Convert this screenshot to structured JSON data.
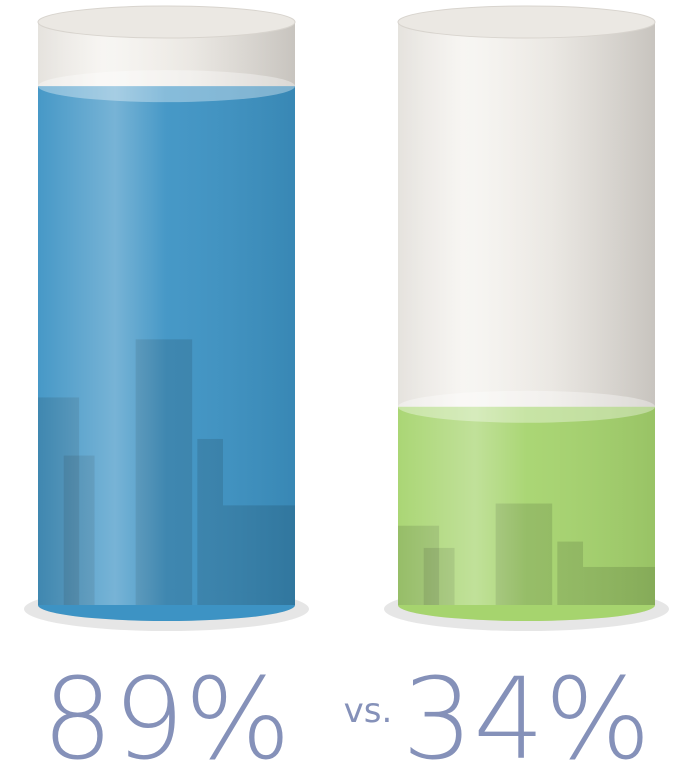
{
  "chart_data": {
    "type": "cylinder",
    "categories": [
      null,
      null
    ],
    "values": [
      89,
      34
    ],
    "value_labels": [
      "89%",
      "34%"
    ],
    "colors": [
      "#3d93c4",
      "#a6d46e"
    ],
    "separator": "vs.",
    "ylim": [
      0,
      100
    ]
  }
}
